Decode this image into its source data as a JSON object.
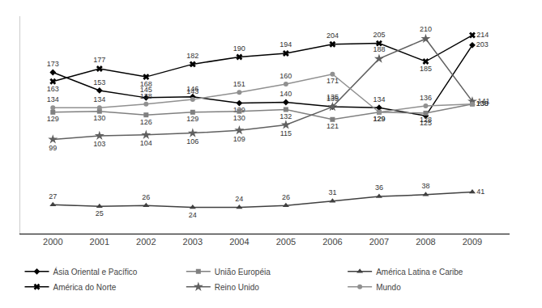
{
  "chart_data": {
    "type": "line",
    "x": [
      2000,
      2001,
      2002,
      2003,
      2004,
      2005,
      2006,
      2007,
      2008,
      2009
    ],
    "series": [
      {
        "name": "Ásia Oriental e Pacífico",
        "color": "#000000",
        "marker": "diamond",
        "values": [
          173,
          153,
          145,
          146,
          139,
          140,
          135,
          134,
          125,
          203
        ]
      },
      {
        "name": "União Européia",
        "color": "#808080",
        "marker": "square",
        "values": [
          129,
          130,
          126,
          129,
          130,
          132,
          121,
          129,
          128,
          138
        ]
      },
      {
        "name": "América Latina e Caribe",
        "color": "#404040",
        "marker": "triangle",
        "values": [
          27,
          25,
          26,
          24,
          24,
          26,
          31,
          36,
          38,
          41
        ]
      },
      {
        "name": "América do Norte",
        "color": "#000000",
        "marker": "x",
        "values": [
          163,
          177,
          168,
          182,
          190,
          194,
          204,
          205,
          185,
          214
        ]
      },
      {
        "name": "Reino Unido",
        "color": "#606060",
        "marker": "star",
        "values": [
          99,
          103,
          104,
          106,
          109,
          115,
          135,
          188,
          210,
          141
        ]
      },
      {
        "name": "Mundo",
        "color": "#909090",
        "marker": "circle",
        "values": [
          134,
          134,
          138,
          143,
          151,
          160,
          171,
          129,
          136,
          138
        ]
      }
    ],
    "xlim": [
      1999.3,
      2009.8
    ],
    "xticks": [
      2000,
      2001,
      2002,
      2003,
      2004,
      2005,
      2006,
      2007,
      2008,
      2009
    ],
    "ylim": [
      -5,
      235
    ],
    "yticks": [],
    "tick_labels": "x",
    "data_labels": true,
    "grid": false,
    "legend": "bottom"
  }
}
